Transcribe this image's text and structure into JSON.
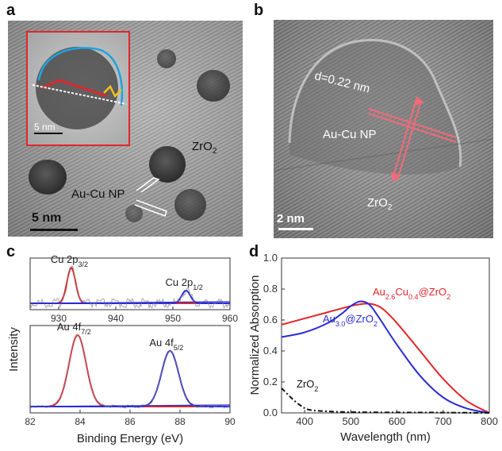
{
  "panels": {
    "a": {
      "label": "a",
      "inset_scale": "5 nm",
      "scale": "5 nm",
      "zro2_main": "ZrO",
      "zro2_sub": "2",
      "np_label": "Au-Cu NP"
    },
    "b": {
      "label": "b",
      "d_spacing": "d=0.22 nm",
      "np_label": "Au-Cu NP",
      "zro2_main": "ZrO",
      "zro2_sub": "2",
      "scale": "2 nm"
    }
  },
  "chart_data": [
    {
      "id": "c",
      "panel_label": "c",
      "type": "line",
      "ylabel": "Intensity",
      "xlabel": "Binding Energy (eV)",
      "subplots": [
        {
          "name": "Cu",
          "xlim": [
            925,
            960
          ],
          "xticks": [
            930,
            940,
            950,
            960
          ],
          "peaks": [
            {
              "label": "Cu 2p",
              "sub": "3/2",
              "center": 932.2,
              "height": 1.0,
              "color": "#e0262c"
            },
            {
              "label": "Cu 2p",
              "sub": "1/2",
              "center": 952.3,
              "height": 0.36,
              "color": "#2b2bd6"
            }
          ]
        },
        {
          "name": "Au",
          "xlim": [
            82,
            90
          ],
          "xticks": [
            82,
            84,
            86,
            88,
            90
          ],
          "peaks": [
            {
              "label": "Au 4f",
              "sub": "7/2",
              "center": 83.9,
              "height": 1.0,
              "color": "#e0262c"
            },
            {
              "label": "Au 4f",
              "sub": "5/2",
              "center": 87.6,
              "height": 0.78,
              "color": "#2b2bd6"
            }
          ]
        }
      ]
    },
    {
      "id": "d",
      "panel_label": "d",
      "type": "line",
      "xlabel": "Wavelength (nm)",
      "ylabel": "Normalized Absorption",
      "xlim": [
        350,
        800
      ],
      "ylim": [
        0,
        1.0
      ],
      "xticks": [
        400,
        500,
        600,
        700,
        800
      ],
      "yticks": [
        0.0,
        0.2,
        0.4,
        0.6,
        0.8,
        1.0
      ],
      "ytick_labels": [
        "0.0",
        "0.2",
        "0.4",
        "0.6",
        "0.8",
        "1.0"
      ],
      "series": [
        {
          "key": "au_cu",
          "label_main": "Au",
          "label_parts": [
            [
              "Au",
              ""
            ],
            [
              "2.6",
              "sub"
            ],
            [
              "Cu",
              ""
            ],
            [
              "0.4",
              "sub"
            ],
            [
              "@ZrO",
              ""
            ],
            [
              "2",
              "sub"
            ]
          ],
          "color": "#e0262c",
          "x": [
            350,
            400,
            450,
            500,
            530,
            550,
            570,
            600,
            650,
            700,
            750,
            800
          ],
          "y": [
            0.57,
            0.61,
            0.65,
            0.69,
            0.705,
            0.7,
            0.67,
            0.58,
            0.4,
            0.22,
            0.08,
            0.0
          ]
        },
        {
          "key": "au",
          "label_main": "Au",
          "label_parts": [
            [
              "Au",
              ""
            ],
            [
              "3.0",
              "sub"
            ],
            [
              "@ZrO",
              ""
            ],
            [
              "2",
              "sub"
            ]
          ],
          "color": "#2b2bd6",
          "x": [
            350,
            400,
            450,
            480,
            500,
            520,
            540,
            560,
            600,
            650,
            700,
            750,
            800
          ],
          "y": [
            0.49,
            0.52,
            0.58,
            0.64,
            0.69,
            0.72,
            0.7,
            0.62,
            0.44,
            0.24,
            0.1,
            0.03,
            0.0
          ]
        },
        {
          "key": "zro2",
          "label_parts": [
            [
              "ZrO",
              ""
            ],
            [
              "2",
              "sub"
            ]
          ],
          "color": "#111111",
          "dash": true,
          "x": [
            350,
            370,
            390,
            410,
            450,
            500,
            600,
            700,
            800
          ],
          "y": [
            0.16,
            0.1,
            0.05,
            0.02,
            0.01,
            0.005,
            0.003,
            0.002,
            0.0
          ]
        }
      ]
    }
  ]
}
